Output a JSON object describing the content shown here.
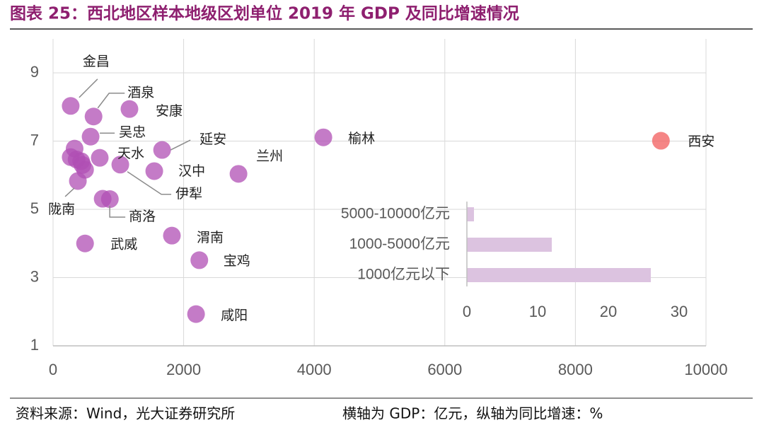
{
  "title": "图表 25：西北地区样本地级区划单位 2019 年 GDP 及同比增速情况",
  "source": "资料来源：Wind，光大证券研究所",
  "note": "横轴为 GDP：亿元，纵轴为同比增速：%",
  "chart_data": [
    {
      "type": "scatter",
      "xlim": [
        0,
        10000
      ],
      "xticks": [
        0,
        2000,
        4000,
        6000,
        8000,
        10000
      ],
      "ylim": [
        1,
        9
      ],
      "yticks": [
        1,
        3,
        5,
        7,
        9
      ],
      "grid": true,
      "series": [
        {
          "color": "#b04fb4",
          "x": [
            270,
            620,
            1170,
            575,
            1670,
            715,
            1550,
            1030,
            2840,
            4140,
            380,
            760,
            490,
            1820,
            2240,
            2190,
            330,
            270,
            430,
            490,
            360,
            450,
            870
          ],
          "y": [
            8.03,
            7.72,
            7.94,
            7.13,
            6.74,
            6.51,
            6.12,
            6.31,
            6.04,
            7.11,
            5.83,
            5.31,
            4.0,
            4.23,
            3.51,
            1.93,
            6.78,
            6.53,
            6.41,
            6.16,
            6.46,
            6.3,
            5.3
          ],
          "labels": [
            "金昌",
            "酒泉",
            "安康",
            "吴忠",
            "延安",
            "天水",
            "汉中",
            "伊犁",
            "兰州",
            "榆林",
            "陇南",
            "商洛",
            "武威",
            "渭南",
            "宝鸡",
            "咸阳",
            null,
            null,
            null,
            null,
            null,
            null,
            null
          ]
        },
        {
          "color": "#f25c5c",
          "x": [
            9310
          ],
          "y": [
            7.01
          ],
          "labels": [
            "西安"
          ]
        }
      ]
    },
    {
      "type": "barh",
      "categories": [
        "5000-10000亿元",
        "1000-5000亿元",
        "1000亿元以下"
      ],
      "values": [
        1,
        12,
        26
      ],
      "color": "#dcc3e0",
      "xlim": [
        0,
        30
      ],
      "xticks": [
        0,
        10,
        20,
        30
      ]
    }
  ]
}
